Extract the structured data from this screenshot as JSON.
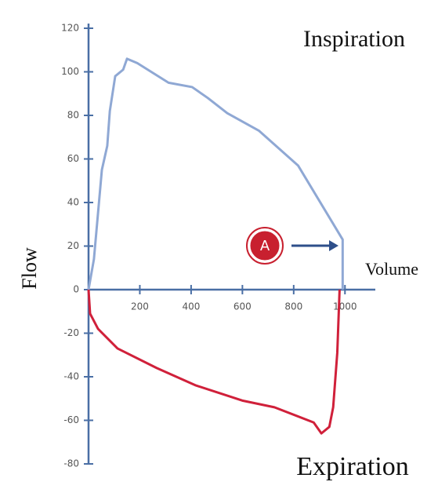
{
  "chart_data": {
    "type": "line",
    "inspiration_label": "Inspiration",
    "expiration_label": "Expiration",
    "x_label": "Volume",
    "y_label": "Flow",
    "marker_label": "A",
    "xlim": [
      0,
      1100
    ],
    "ylim": [
      -80,
      120
    ],
    "xticks": [
      200,
      400,
      600,
      800,
      1000
    ],
    "yticks": [
      -80,
      -60,
      -40,
      -20,
      0,
      20,
      40,
      60,
      80,
      100,
      120
    ],
    "axis_color": "#4a6fa5",
    "series": [
      {
        "color": "#8fa8d4",
        "x": [
          0,
          21,
          52,
          73,
          83,
          104,
          135,
          150,
          190,
          312,
          404,
          465,
          541,
          664,
          817,
          991,
          991
        ],
        "values": [
          0,
          14,
          55,
          66,
          82,
          98,
          101,
          106,
          104,
          95,
          93,
          88,
          81,
          73,
          57,
          23,
          0
        ]
      },
      {
        "color": "#d0203a",
        "x": [
          0,
          6,
          37,
          113,
          266,
          419,
          602,
          725,
          878,
          908,
          939,
          954,
          970,
          979
        ],
        "values": [
          0,
          -11,
          -18,
          -27,
          -36,
          -44,
          -51,
          -54,
          -61,
          -66,
          -63,
          -54,
          -29,
          0
        ]
      }
    ]
  }
}
